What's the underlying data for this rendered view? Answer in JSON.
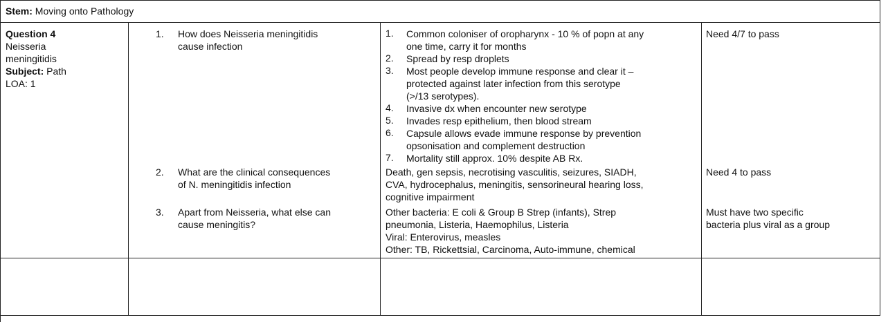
{
  "stem": {
    "label": "Stem:",
    "value": "Moving onto Pathology"
  },
  "meta": {
    "question_label": "Question 4",
    "question_topic_line1": "Neisseria",
    "question_topic_line2": "meningitidis",
    "subject_label": "Subject:",
    "subject_value": "Path",
    "loa": "LOA: 1"
  },
  "rows": [
    {
      "num": "1.",
      "question_line1": "How does Neisseria meningitidis",
      "question_line2": "cause infection",
      "answers": [
        {
          "n": "1.",
          "lines": [
            "Common coloniser of oropharynx - 10 % of popn at any",
            "one time, carry it for months"
          ]
        },
        {
          "n": "2.",
          "lines": [
            "Spread by resp droplets"
          ]
        },
        {
          "n": "3.",
          "lines": [
            "Most people develop immune response and clear it –",
            "protected against later infection from this serotype",
            "(>/13 serotypes)."
          ]
        },
        {
          "n": "4.",
          "lines": [
            "Invasive dx when encounter new serotype"
          ]
        },
        {
          "n": "5.",
          "lines": [
            "Invades resp epithelium, then blood stream"
          ]
        },
        {
          "n": "6.",
          "lines": [
            "Capsule allows evade immune response by prevention",
            "opsonisation and complement destruction"
          ]
        },
        {
          "n": "7.",
          "lines": [
            "Mortality still approx. 10% despite AB Rx."
          ]
        }
      ],
      "pass": "Need 4/7 to pass"
    },
    {
      "num": "2.",
      "question_line1": "What are the clinical consequences",
      "question_line2": "of N. meningitidis infection",
      "answer_lines": [
        "Death, gen sepsis, necrotising vasculitis, seizures, SIADH,",
        "CVA, hydrocephalus, meningitis, sensorineural hearing loss,",
        "cognitive impairment"
      ],
      "pass": "Need 4 to pass"
    },
    {
      "num": "3.",
      "question_line1": "Apart from Neisseria, what else can",
      "question_line2": "cause meningitis?",
      "answer_lines": [
        "Other bacteria: E coli & Group B Strep (infants), Strep",
        "pneumonia, Listeria, Haemophilus, Listeria",
        "Viral: Enterovirus, measles",
        "Other: TB, Rickettsial, Carcinoma, Auto-immune, chemical"
      ],
      "pass_line1": "Must have two specific",
      "pass_line2": "bacteria plus viral as a group"
    }
  ]
}
